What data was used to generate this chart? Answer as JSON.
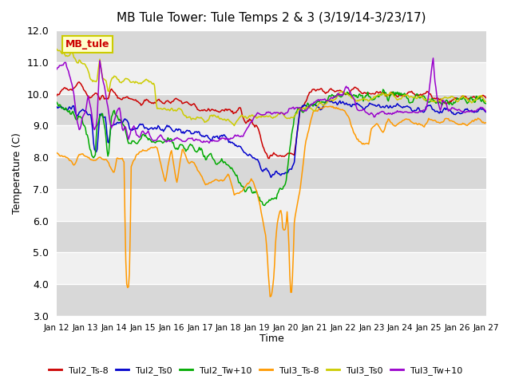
{
  "title": "MB Tule Tower: Tule Temps 2 & 3 (3/19/14-3/23/17)",
  "xlabel": "Time",
  "ylabel": "Temperature (C)",
  "ylim": [
    3.0,
    12.0
  ],
  "yticks": [
    3.0,
    4.0,
    5.0,
    6.0,
    7.0,
    8.0,
    9.0,
    10.0,
    11.0,
    12.0
  ],
  "xtick_labels": [
    "Jan 12",
    "Jan 13",
    "Jan 14",
    "Jan 15",
    "Jan 16",
    "Jan 17",
    "Jan 18",
    "Jan 19",
    "Jan 20",
    "Jan 21",
    "Jan 22",
    "Jan 23",
    "Jan 24",
    "Jan 25",
    "Jan 26",
    "Jan 27"
  ],
  "series": {
    "Tul2_Ts-8": {
      "color": "#cc0000"
    },
    "Tul2_Ts0": {
      "color": "#0000cc"
    },
    "Tul2_Tw+10": {
      "color": "#00aa00"
    },
    "Tul3_Ts-8": {
      "color": "#ff9900"
    },
    "Tul3_Ts0": {
      "color": "#cccc00"
    },
    "Tul3_Tw+10": {
      "color": "#9900cc"
    }
  },
  "bg_color": "#ffffff",
  "plot_bg_light": "#f0f0f0",
  "plot_bg_dark": "#d8d8d8",
  "grid_color": "#ffffff",
  "watermark_text": "MB_tule",
  "watermark_color": "#cc0000",
  "watermark_bg": "#ffffcc",
  "watermark_border": "#cccc00"
}
